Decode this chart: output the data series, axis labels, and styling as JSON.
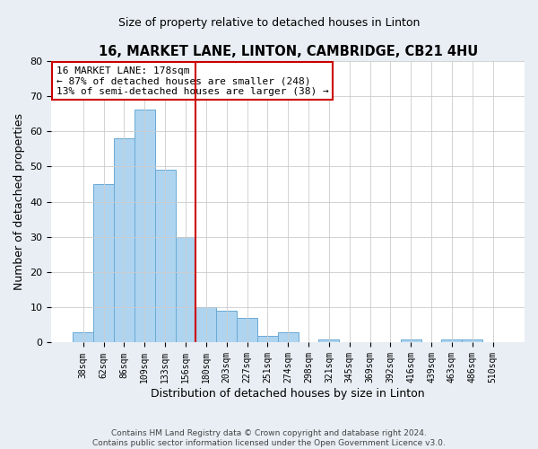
{
  "title": "16, MARKET LANE, LINTON, CAMBRIDGE, CB21 4HU",
  "subtitle": "Size of property relative to detached houses in Linton",
  "xlabel": "Distribution of detached houses by size in Linton",
  "ylabel": "Number of detached properties",
  "bar_labels": [
    "38sqm",
    "62sqm",
    "86sqm",
    "109sqm",
    "133sqm",
    "156sqm",
    "180sqm",
    "203sqm",
    "227sqm",
    "251sqm",
    "274sqm",
    "298sqm",
    "321sqm",
    "345sqm",
    "369sqm",
    "392sqm",
    "416sqm",
    "439sqm",
    "463sqm",
    "486sqm",
    "510sqm"
  ],
  "bar_values": [
    3,
    45,
    58,
    66,
    49,
    30,
    10,
    9,
    7,
    2,
    3,
    0,
    1,
    0,
    0,
    0,
    1,
    0,
    1,
    1,
    0
  ],
  "bar_color": "#aed4f0",
  "bar_edge_color": "#6aaad4",
  "property_line_color": "#cc0000",
  "property_line_index": 6,
  "ylim": [
    0,
    80
  ],
  "yticks": [
    0,
    10,
    20,
    30,
    40,
    50,
    60,
    70,
    80
  ],
  "annotation_line1": "16 MARKET LANE: 178sqm",
  "annotation_line2": "← 87% of detached houses are smaller (248)",
  "annotation_line3": "13% of semi-detached houses are larger (38) →",
  "annotation_box_color": "#cc0000",
  "annotation_box_facecolor": "white",
  "footer1": "Contains HM Land Registry data © Crown copyright and database right 2024.",
  "footer2": "Contains public sector information licensed under the Open Government Licence v3.0.",
  "background_color": "#e8eef4",
  "plot_background_color": "white",
  "grid_color": "#cccccc",
  "title_fontsize": 10.5,
  "subtitle_fontsize": 9,
  "axis_label_fontsize": 9,
  "tick_fontsize": 7,
  "annotation_fontsize": 8,
  "footer_fontsize": 6.5
}
